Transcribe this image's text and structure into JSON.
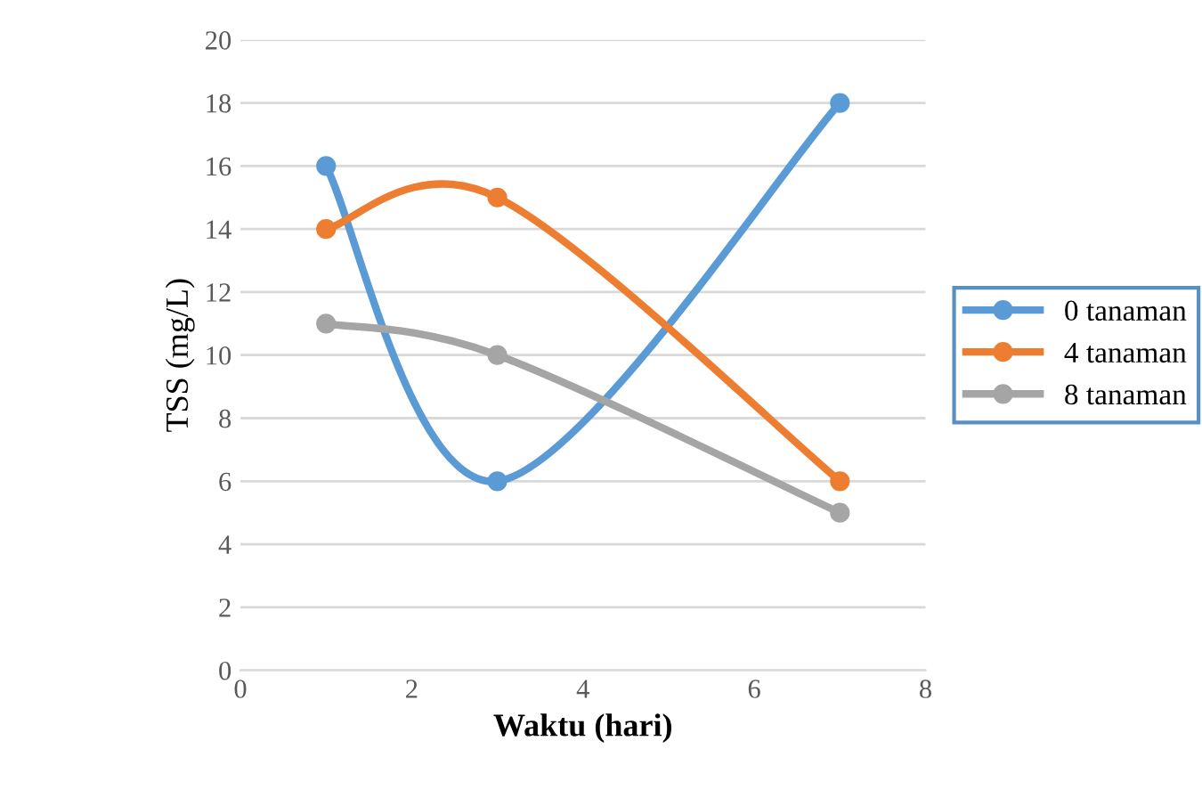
{
  "chart_data": {
    "type": "line",
    "xlabel": "Waktu (hari)",
    "ylabel": "TSS (mg/L)",
    "x": [
      1,
      3,
      7
    ],
    "series": [
      {
        "name": "0 tanaman",
        "color": "#5b9bd5",
        "values": [
          16,
          6,
          18
        ]
      },
      {
        "name": "4 tanaman",
        "color": "#ed7d31",
        "values": [
          14,
          15,
          6
        ]
      },
      {
        "name": "8 tanaman",
        "color": "#a5a5a5",
        "values": [
          11,
          10,
          5
        ]
      }
    ],
    "xlim": [
      0,
      8
    ],
    "xticks": [
      0,
      2,
      4,
      6,
      8
    ],
    "ylim": [
      0,
      20
    ],
    "yticks": [
      0,
      2,
      4,
      6,
      8,
      10,
      12,
      14,
      16,
      18,
      20
    ],
    "grid": "y",
    "legend": "right",
    "marker": "circle",
    "line_style": "solid"
  }
}
